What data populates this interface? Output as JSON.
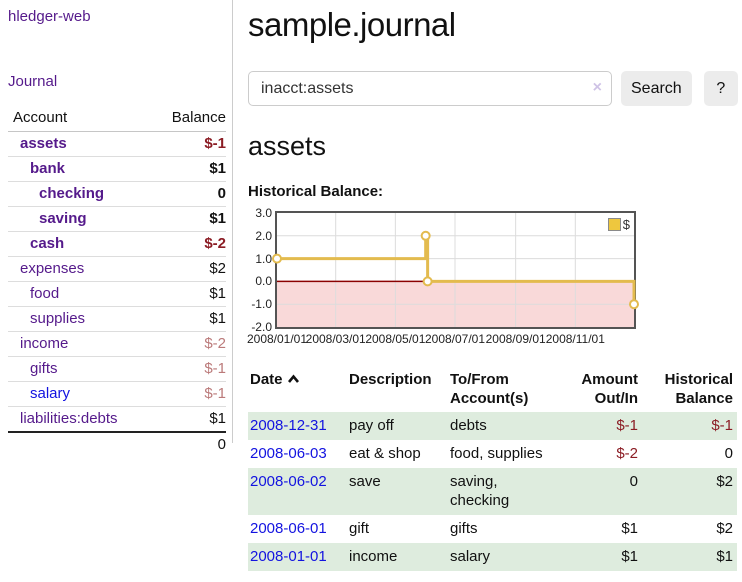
{
  "brand": "hledger-web",
  "nav": {
    "journal": "Journal"
  },
  "page": {
    "title": "sample.journal",
    "account_title": "assets",
    "chart_heading": "Historical Balance:"
  },
  "search": {
    "value": "inacct:assets",
    "clear": "×",
    "button_label": "Search",
    "help_label": "?"
  },
  "sidebar": {
    "headers": {
      "account": "Account",
      "balance": "Balance"
    },
    "accounts": [
      {
        "name": "assets",
        "balance": "$-1"
      },
      {
        "name": "bank",
        "balance": "$1"
      },
      {
        "name": "checking",
        "balance": "0"
      },
      {
        "name": "saving",
        "balance": "$1"
      },
      {
        "name": "cash",
        "balance": "$-2"
      },
      {
        "name": "expenses",
        "balance": "$2"
      },
      {
        "name": "food",
        "balance": "$1"
      },
      {
        "name": "supplies",
        "balance": "$1"
      },
      {
        "name": "income",
        "balance": "$-2"
      },
      {
        "name": "gifts",
        "balance": "$-1"
      },
      {
        "name": "salary",
        "balance": "$-1"
      },
      {
        "name": "liabilities:debts",
        "balance": "$1"
      }
    ],
    "total": "0"
  },
  "chart_data": {
    "type": "line",
    "step": true,
    "title": "Historical Balance:",
    "series": [
      {
        "name": "$",
        "color": "#e3bb4e",
        "points": [
          [
            "2008-01-01",
            1
          ],
          [
            "2008-06-01",
            2
          ],
          [
            "2008-06-03",
            0
          ],
          [
            "2008-12-31",
            -1
          ]
        ]
      }
    ],
    "ylim": [
      -2,
      3
    ],
    "y_ticks": [
      "3.0",
      "2.0",
      "1.0",
      "0.0",
      "-1.0",
      "-2.0"
    ],
    "x_domain": [
      "2008-01-01",
      "2008-12-31"
    ],
    "x_ticks": [
      {
        "date": "2008-01-01",
        "label": "2008/01/01"
      },
      {
        "date": "2008-03-01",
        "label": "2008/03/01"
      },
      {
        "date": "2008-05-01",
        "label": "2008/05/01"
      },
      {
        "date": "2008-07-01",
        "label": "2008/07/01"
      },
      {
        "date": "2008-09-01",
        "label": "2008/09/01"
      },
      {
        "date": "2008-11-01",
        "label": "2008/11/01"
      }
    ],
    "grid_on": true,
    "grid_color": "#dcdcdc",
    "negative_region_fill": "#f9d9d9",
    "zero_line_color": "#8b0000",
    "legend": {
      "label": "$",
      "swatch_fill": "#eec73e",
      "position": "top-right"
    }
  },
  "register": {
    "headers": {
      "date": "Date",
      "description": "Description",
      "accounts_l1": "To/From",
      "accounts_l2": "Account(s)",
      "amount_l1": "Amount",
      "amount_l2": "Out/In",
      "balance_l1": "Historical",
      "balance_l2": "Balance"
    },
    "rows": [
      {
        "date": "2008-12-31",
        "description": "pay off",
        "accounts": "debts",
        "amount": "$-1",
        "balance": "$-1"
      },
      {
        "date": "2008-06-03",
        "description": "eat & shop",
        "accounts": "food, supplies",
        "amount": "$-2",
        "balance": "0"
      },
      {
        "date": "2008-06-02",
        "description": "save",
        "accounts": "saving, checking",
        "amount": "0",
        "balance": "$2"
      },
      {
        "date": "2008-06-01",
        "description": "gift",
        "accounts": "gifts",
        "amount": "$1",
        "balance": "$2"
      },
      {
        "date": "2008-01-01",
        "description": "income",
        "accounts": "salary",
        "amount": "$1",
        "balance": "$1"
      }
    ]
  }
}
